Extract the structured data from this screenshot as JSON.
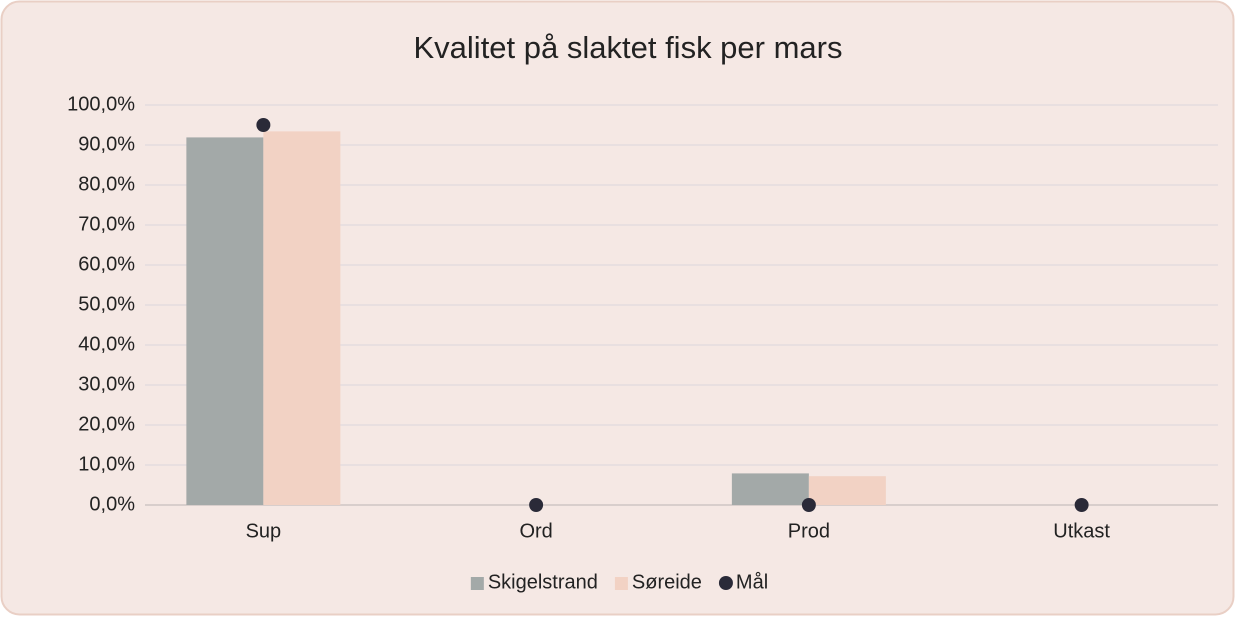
{
  "chart_data": {
    "type": "bar",
    "title": "Kvalitet på slaktet fisk per mars",
    "categories": [
      "Sup",
      "Ord",
      "Prod",
      "Utkast"
    ],
    "series": [
      {
        "name": "Skigelstrand",
        "color": "#a3a9a8",
        "type": "bar",
        "values": [
          91.9,
          0,
          7.9,
          0
        ]
      },
      {
        "name": "Søreide",
        "color": "#f2d2c4",
        "type": "bar",
        "values": [
          93.4,
          0,
          7.2,
          0
        ]
      },
      {
        "name": "Mål",
        "color": "#2a2a38",
        "type": "scatter",
        "values": [
          95,
          0,
          0,
          0
        ]
      }
    ],
    "ylim": [
      0,
      100
    ],
    "yticks": [
      {
        "value": 0,
        "label": "0,0%"
      },
      {
        "value": 10,
        "label": "10,0%"
      },
      {
        "value": 20,
        "label": "20,0%"
      },
      {
        "value": 30,
        "label": "30,0%"
      },
      {
        "value": 40,
        "label": "40,0%"
      },
      {
        "value": 50,
        "label": "50,0%"
      },
      {
        "value": 60,
        "label": "60,0%"
      },
      {
        "value": 70,
        "label": "70,0%"
      },
      {
        "value": 80,
        "label": "80,0%"
      },
      {
        "value": 90,
        "label": "90,0%"
      },
      {
        "value": 100,
        "label": "100,0%"
      }
    ],
    "grid": true,
    "legend": "bottom"
  }
}
